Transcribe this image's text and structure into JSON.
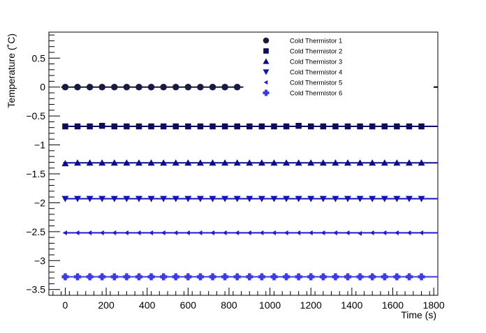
{
  "chart_data": {
    "type": "scatter",
    "title": "",
    "xlabel": "Time (s)",
    "ylabel": "Temperature (˚C)",
    "xlim": [
      -80,
      1820
    ],
    "ylim": [
      -3.6,
      0.95
    ],
    "x_ticks_major": [
      0,
      200,
      400,
      600,
      800,
      1000,
      1200,
      1400,
      1600,
      1800
    ],
    "x_tick_labels": [
      "0",
      "200",
      "400",
      "600",
      "800",
      "1000",
      "1200",
      "1400",
      "1600",
      "1800"
    ],
    "y_ticks_major": [
      0.5,
      0,
      -0.5,
      -1,
      -1.5,
      -2,
      -2.5,
      -3,
      -3.5
    ],
    "y_tick_labels": [
      "0.5",
      "0",
      "−0.5",
      "−1",
      "−1.5",
      "−2",
      "−2.5",
      "−3",
      "−3.5"
    ],
    "grid": false,
    "legend_position": "top-right",
    "series": [
      {
        "name": "Cold Thermistor 1",
        "marker": "circle",
        "color": "#1a1a40",
        "x": [
          0,
          60,
          120,
          180,
          240,
          300,
          360,
          420,
          480,
          540,
          600,
          660,
          720,
          780,
          840
        ],
        "values": [
          0,
          0,
          0,
          0,
          0,
          0,
          0,
          0,
          0,
          0,
          0,
          0,
          0,
          0,
          0
        ],
        "fit_x": [
          -20,
          870
        ],
        "fit_y": [
          0,
          0
        ]
      },
      {
        "name": "Cold Thermistor 2",
        "marker": "square",
        "color": "#0b0b60",
        "x": [
          0,
          60,
          120,
          180,
          240,
          300,
          360,
          420,
          480,
          540,
          600,
          660,
          720,
          780,
          840,
          900,
          960,
          1020,
          1080,
          1140,
          1200,
          1260,
          1320,
          1380,
          1440,
          1500,
          1560,
          1620,
          1680,
          1740
        ],
        "values": [
          -0.68,
          -0.68,
          -0.68,
          -0.67,
          -0.68,
          -0.68,
          -0.68,
          -0.68,
          -0.68,
          -0.68,
          -0.68,
          -0.68,
          -0.68,
          -0.68,
          -0.68,
          -0.68,
          -0.68,
          -0.68,
          -0.68,
          -0.67,
          -0.68,
          -0.68,
          -0.68,
          -0.68,
          -0.68,
          -0.68,
          -0.68,
          -0.68,
          -0.68,
          -0.68
        ],
        "fit_x": [
          -10,
          1820
        ],
        "fit_y": [
          -0.68,
          -0.68
        ]
      },
      {
        "name": "Cold Thermistor 3",
        "marker": "triangle-up",
        "color": "#0d0d8a",
        "x": [
          0,
          60,
          120,
          180,
          240,
          300,
          360,
          420,
          480,
          540,
          600,
          660,
          720,
          780,
          840,
          900,
          960,
          1020,
          1080,
          1140,
          1200,
          1260,
          1320,
          1380,
          1440,
          1500,
          1560,
          1620,
          1680,
          1740
        ],
        "values": [
          -1.32,
          -1.31,
          -1.31,
          -1.31,
          -1.31,
          -1.31,
          -1.31,
          -1.31,
          -1.31,
          -1.31,
          -1.31,
          -1.31,
          -1.31,
          -1.31,
          -1.31,
          -1.31,
          -1.31,
          -1.31,
          -1.31,
          -1.31,
          -1.31,
          -1.31,
          -1.31,
          -1.31,
          -1.31,
          -1.31,
          -1.31,
          -1.31,
          -1.31,
          -1.31
        ],
        "fit_x": [
          -10,
          1820
        ],
        "fit_y": [
          -1.31,
          -1.31
        ]
      },
      {
        "name": "Cold Thermistor 4",
        "marker": "triangle-down",
        "color": "#1414b4",
        "x": [
          0,
          60,
          120,
          180,
          240,
          300,
          360,
          420,
          480,
          540,
          600,
          660,
          720,
          780,
          840,
          900,
          960,
          1020,
          1080,
          1140,
          1200,
          1260,
          1320,
          1380,
          1440,
          1500,
          1560,
          1620,
          1680,
          1740
        ],
        "values": [
          -1.93,
          -1.93,
          -1.93,
          -1.93,
          -1.93,
          -1.93,
          -1.93,
          -1.93,
          -1.93,
          -1.93,
          -1.93,
          -1.93,
          -1.93,
          -1.93,
          -1.93,
          -1.93,
          -1.93,
          -1.93,
          -1.93,
          -1.93,
          -1.93,
          -1.93,
          -1.93,
          -1.93,
          -1.93,
          -1.93,
          -1.93,
          -1.93,
          -1.93,
          -1.93
        ],
        "fit_x": [
          -10,
          1820
        ],
        "fit_y": [
          -1.93,
          -1.93
        ]
      },
      {
        "name": "Cold Thermistor 5",
        "marker": "triangle-left",
        "color": "#1a1ad2",
        "x": [
          0,
          60,
          120,
          180,
          240,
          300,
          360,
          420,
          480,
          540,
          600,
          660,
          720,
          780,
          840,
          900,
          960,
          1020,
          1080,
          1140,
          1200,
          1260,
          1320,
          1380,
          1440,
          1500,
          1560,
          1620,
          1680,
          1740
        ],
        "values": [
          -2.52,
          -2.52,
          -2.52,
          -2.52,
          -2.52,
          -2.52,
          -2.52,
          -2.52,
          -2.52,
          -2.52,
          -2.52,
          -2.52,
          -2.52,
          -2.52,
          -2.52,
          -2.52,
          -2.52,
          -2.52,
          -2.52,
          -2.52,
          -2.52,
          -2.52,
          -2.52,
          -2.52,
          -2.53,
          -2.52,
          -2.52,
          -2.52,
          -2.52,
          -2.52
        ],
        "fit_x": [
          -10,
          1820
        ],
        "fit_y": [
          -2.52,
          -2.52
        ]
      },
      {
        "name": "Cold Thermistor 6",
        "marker": "cross",
        "color": "#3a3ae6",
        "x": [
          0,
          60,
          120,
          180,
          240,
          300,
          360,
          420,
          480,
          540,
          600,
          660,
          720,
          780,
          840,
          900,
          960,
          1020,
          1080,
          1140,
          1200,
          1260,
          1320,
          1380,
          1440,
          1500,
          1560,
          1620,
          1680,
          1740
        ],
        "values": [
          -3.28,
          -3.28,
          -3.28,
          -3.28,
          -3.28,
          -3.28,
          -3.28,
          -3.28,
          -3.28,
          -3.28,
          -3.28,
          -3.28,
          -3.28,
          -3.28,
          -3.28,
          -3.28,
          -3.28,
          -3.28,
          -3.28,
          -3.28,
          -3.28,
          -3.28,
          -3.28,
          -3.28,
          -3.28,
          -3.28,
          -3.28,
          -3.28,
          -3.28,
          -3.28
        ],
        "fit_x": [
          -10,
          1820
        ],
        "fit_y": [
          -3.28,
          -3.28
        ]
      }
    ]
  }
}
